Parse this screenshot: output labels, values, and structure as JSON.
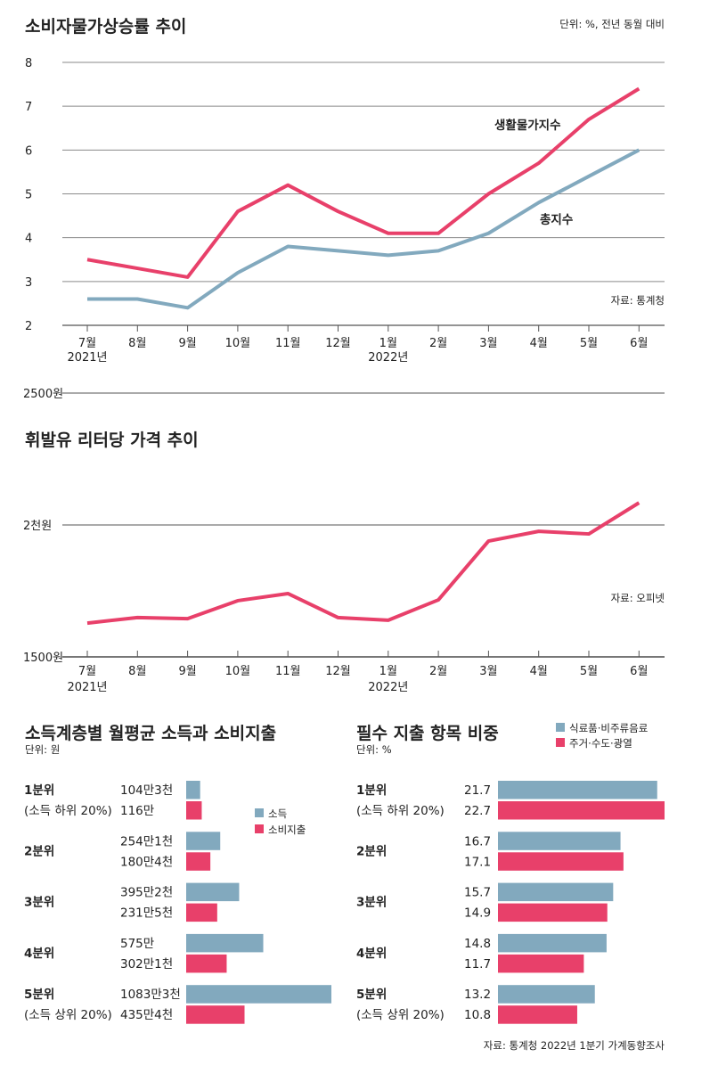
{
  "colors": {
    "red": "#e8406a",
    "blue": "#82a9be",
    "grid": "#8a8a8a"
  },
  "chart_data": [
    {
      "type": "line",
      "title": "소비자물가상승률 추이",
      "unit": "단위: %, 전년 동월 대비",
      "source": "자료: 통계청",
      "ylim": [
        2,
        8
      ],
      "yticks": [
        "8",
        "7",
        "6",
        "5",
        "4",
        "3",
        "2"
      ],
      "categories": [
        "7월",
        "8월",
        "9월",
        "10월",
        "11월",
        "12월",
        "1월",
        "2월",
        "3월",
        "4월",
        "5월",
        "6월"
      ],
      "year_labels": [
        "2021년",
        "2022년"
      ],
      "grid": true,
      "series": [
        {
          "name": "생활물가지수",
          "color": "#e8406a",
          "values": [
            3.5,
            3.3,
            3.1,
            4.6,
            5.2,
            4.6,
            4.1,
            4.1,
            5.0,
            5.7,
            6.7,
            7.4
          ]
        },
        {
          "name": "총지수",
          "color": "#82a9be",
          "values": [
            2.6,
            2.6,
            2.4,
            3.2,
            3.8,
            3.7,
            3.6,
            3.7,
            4.1,
            4.8,
            5.4,
            6.0
          ]
        }
      ]
    },
    {
      "type": "line",
      "title": "휘발유 리터당 가격 추이",
      "source": "자료: 오피넷",
      "ylim": [
        1500,
        2500
      ],
      "yticks": [
        "2500원",
        "2천원",
        "1500원"
      ],
      "categories": [
        "7월",
        "8월",
        "9월",
        "10월",
        "11월",
        "12월",
        "1월",
        "2월",
        "3월",
        "4월",
        "5월",
        "6월"
      ],
      "year_labels": [
        "2021년",
        "2022년"
      ],
      "grid": true,
      "series": [
        {
          "color": "#e8406a",
          "values": [
            1628,
            1649,
            1645,
            1713,
            1740,
            1649,
            1639,
            1716,
            1939,
            1976,
            1966,
            2084
          ]
        }
      ]
    },
    {
      "type": "bar",
      "orientation": "horizontal",
      "title": "소득계층별 월평균 소득과 소비지출",
      "unit": "단위: 원",
      "legend": [
        "소득",
        "소비지출"
      ],
      "legend_placement": "center-right",
      "groups": [
        {
          "label": "1분위",
          "sublabel": "(소득 하위 20%)",
          "values": [
            1043000,
            1160000
          ],
          "value_labels": [
            "104만3천",
            "116만"
          ]
        },
        {
          "label": "2분위",
          "sublabel": "",
          "values": [
            2541000,
            1804000
          ],
          "value_labels": [
            "254만1천",
            "180만4천"
          ]
        },
        {
          "label": "3분위",
          "sublabel": "",
          "values": [
            3952000,
            2315000
          ],
          "value_labels": [
            "395만2천",
            "231만5천"
          ]
        },
        {
          "label": "4분위",
          "sublabel": "",
          "values": [
            5750000,
            3021000
          ],
          "value_labels": [
            "575만",
            "302만1천"
          ]
        },
        {
          "label": "5분위",
          "sublabel": "(소득 상위 20%)",
          "values": [
            10833000,
            4354000
          ],
          "value_labels": [
            "1083만3천",
            "435만4천"
          ]
        }
      ]
    },
    {
      "type": "bar",
      "orientation": "horizontal",
      "title": "필수 지출 항목 비중",
      "unit": "단위: %",
      "legend": [
        "식료품·비주류음료",
        "주거·수도·광열"
      ],
      "legend_placement": "top-right",
      "source": "자료: 통계청 2022년 1분기 가계동향조사",
      "groups": [
        {
          "label": "1분위",
          "sublabel": "(소득 하위 20%)",
          "values": [
            21.7,
            22.7
          ],
          "value_labels": [
            "21.7",
            "22.7"
          ]
        },
        {
          "label": "2분위",
          "sublabel": "",
          "values": [
            16.7,
            17.1
          ],
          "value_labels": [
            "16.7",
            "17.1"
          ]
        },
        {
          "label": "3분위",
          "sublabel": "",
          "values": [
            15.7,
            14.9
          ],
          "value_labels": [
            "15.7",
            "14.9"
          ]
        },
        {
          "label": "4분위",
          "sublabel": "",
          "values": [
            14.8,
            11.7
          ],
          "value_labels": [
            "14.8",
            "11.7"
          ]
        },
        {
          "label": "5분위",
          "sublabel": "(소득 상위 20%)",
          "values": [
            13.2,
            10.8
          ],
          "value_labels": [
            "13.2",
            "10.8"
          ]
        }
      ]
    }
  ]
}
